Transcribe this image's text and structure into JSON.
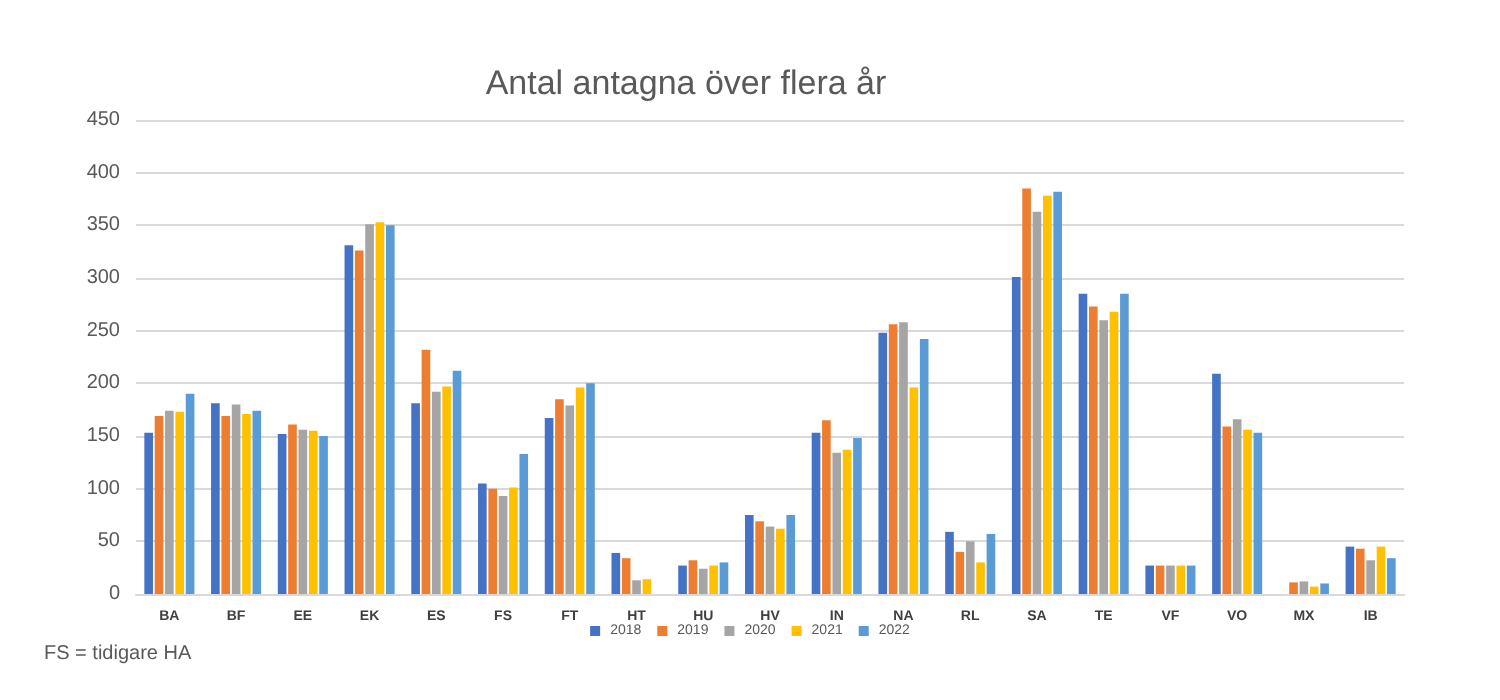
{
  "chart_data": {
    "type": "bar",
    "title": "Antal antagna över flera år",
    "categories": [
      "BA",
      "BF",
      "EE",
      "EK",
      "ES",
      "FS",
      "FT",
      "HT",
      "HU",
      "HV",
      "IN",
      "NA",
      "RL",
      "SA",
      "TE",
      "VF",
      "VO",
      "MX",
      "IB"
    ],
    "series": [
      {
        "name": "2018",
        "color": "#4472c4",
        "values": [
          153,
          181,
          152,
          331,
          181,
          105,
          167,
          39,
          27,
          75,
          153,
          248,
          59,
          301,
          285,
          27,
          209,
          null,
          45
        ]
      },
      {
        "name": "2019",
        "color": "#ed7d31",
        "values": [
          169,
          169,
          161,
          326,
          232,
          100,
          185,
          34,
          32,
          69,
          165,
          256,
          40,
          385,
          273,
          27,
          159,
          11,
          43
        ]
      },
      {
        "name": "2020",
        "color": "#a5a5a5",
        "values": [
          174,
          180,
          156,
          351,
          192,
          93,
          179,
          13,
          24,
          64,
          134,
          258,
          50,
          363,
          260,
          27,
          166,
          12,
          32
        ]
      },
      {
        "name": "2021",
        "color": "#ffc000",
        "values": [
          173,
          171,
          155,
          353,
          197,
          101,
          196,
          14,
          27,
          62,
          137,
          196,
          30,
          378,
          268,
          27,
          156,
          7,
          45
        ]
      },
      {
        "name": "2022",
        "color": "#5b9bd5",
        "values": [
          190,
          174,
          150,
          350,
          212,
          133,
          200,
          null,
          30,
          75,
          148,
          242,
          57,
          382,
          285,
          27,
          153,
          10,
          34
        ]
      }
    ],
    "ylim": [
      0,
      450
    ],
    "yticks": [
      0,
      50,
      100,
      150,
      200,
      250,
      300,
      350,
      400,
      450
    ],
    "grid": "y",
    "legend": "bottom",
    "annotations": [
      "FS = tidigare HA"
    ]
  }
}
